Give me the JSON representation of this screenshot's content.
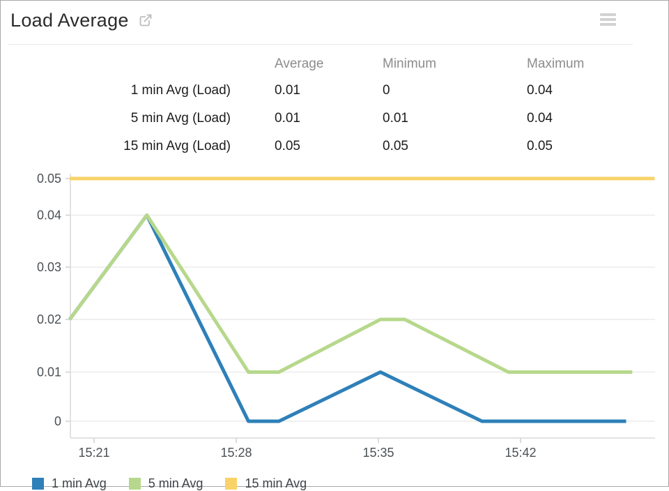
{
  "header": {
    "title": "Load Average"
  },
  "stats_table": {
    "columns": [
      "Average",
      "Minimum",
      "Maximum"
    ],
    "rows": [
      {
        "label": "1 min Avg (Load)",
        "average": "0.01",
        "minimum": "0",
        "maximum": "0.04"
      },
      {
        "label": "5 min Avg (Load)",
        "average": "0.01",
        "minimum": "0.01",
        "maximum": "0.04"
      },
      {
        "label": "15 min Avg (Load)",
        "average": "0.05",
        "minimum": "0.05",
        "maximum": "0.05"
      }
    ]
  },
  "chart_data": {
    "type": "line",
    "title": "Load Average",
    "xlabel": "",
    "ylabel": "",
    "grid": true,
    "legend_position": "bottom",
    "ylim": [
      0,
      0.05
    ],
    "y_ticks": [
      0,
      0.01,
      0.02,
      0.03,
      0.04,
      0.05
    ],
    "y_tick_labels": [
      "0",
      "0.01",
      "0.02",
      "0.03",
      "0.04",
      "0.05"
    ],
    "x_tick_labels": [
      "15:21",
      "15:28",
      "15:35",
      "15:42"
    ],
    "x_tick_minutes": [
      21,
      28,
      35,
      42
    ],
    "x_range_minutes": [
      19.8,
      48.6
    ],
    "series": [
      {
        "name": "1 min Avg",
        "color": "#2E80B9",
        "points": [
          [
            19.8,
            0.02
          ],
          [
            23.6,
            0.04
          ],
          [
            28.6,
            0
          ],
          [
            30.1,
            0
          ],
          [
            35.1,
            0.01
          ],
          [
            40.1,
            0
          ],
          [
            47.2,
            0
          ]
        ]
      },
      {
        "name": "5 min Avg",
        "color": "#B7D88C",
        "points": [
          [
            19.8,
            0.02
          ],
          [
            23.6,
            0.04
          ],
          [
            28.6,
            0.01
          ],
          [
            30.1,
            0.01
          ],
          [
            35.1,
            0.02
          ],
          [
            36.3,
            0.02
          ],
          [
            41.4,
            0.01
          ],
          [
            47.5,
            0.01
          ]
        ]
      },
      {
        "name": "15 min Avg",
        "color": "#F9D368",
        "points": [
          [
            19.8,
            0.05
          ],
          [
            48.6,
            0.05
          ]
        ]
      }
    ]
  },
  "legend": [
    {
      "label": "1 min Avg",
      "color": "#2E80B9"
    },
    {
      "label": "5 min Avg",
      "color": "#B7D88C"
    },
    {
      "label": "15 min Avg",
      "color": "#F9D368"
    }
  ]
}
